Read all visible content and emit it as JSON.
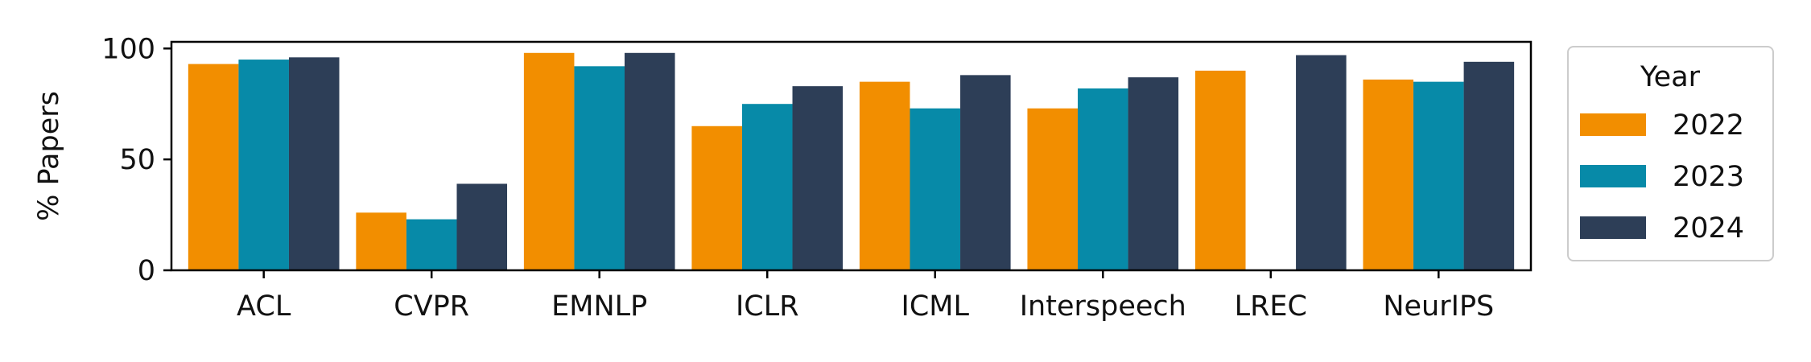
{
  "chart_data": {
    "type": "bar",
    "title": "",
    "xlabel": "",
    "ylabel": "% Papers",
    "ylim": [
      0,
      103
    ],
    "yticks": [
      0,
      50,
      100
    ],
    "grid": false,
    "categories": [
      "ACL",
      "CVPR",
      "EMNLP",
      "ICLR",
      "ICML",
      "Interspeech",
      "LREC",
      "NeurIPS"
    ],
    "series": [
      {
        "name": "2022",
        "color": "#F28E00",
        "values": [
          93,
          26,
          98,
          65,
          85,
          73,
          90,
          86
        ]
      },
      {
        "name": "2023",
        "color": "#078AA8",
        "values": [
          95,
          23,
          92,
          75,
          73,
          82,
          null,
          85
        ]
      },
      {
        "name": "2024",
        "color": "#2D3E57",
        "values": [
          96,
          39,
          98,
          83,
          88,
          87,
          97,
          94
        ]
      }
    ],
    "legend": {
      "title": "Year",
      "position": "right"
    }
  }
}
